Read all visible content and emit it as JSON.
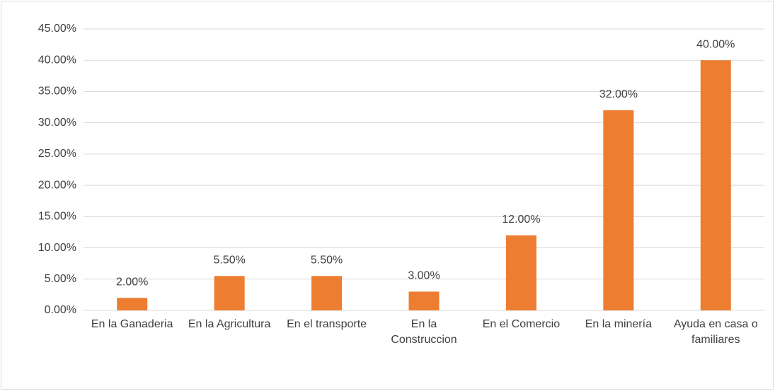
{
  "chart_data": {
    "type": "bar",
    "categories": [
      "En la Ganaderia",
      "En la Agricultura",
      "En el transporte",
      "En la Construccion",
      "En el Comercio",
      "En la minería",
      "Ayuda en casa o familiares"
    ],
    "values": [
      2,
      5.5,
      5.5,
      3,
      12,
      32,
      40
    ],
    "value_labels": [
      "2.00%",
      "5.50%",
      "5.50%",
      "3.00%",
      "12.00%",
      "32.00%",
      "40.00%"
    ],
    "color": "#ed7d31",
    "ylim": [
      0,
      45
    ],
    "yticks": [
      {
        "value": 0,
        "label": "0.00%"
      },
      {
        "value": 5,
        "label": "5.00%"
      },
      {
        "value": 10,
        "label": "10.00%"
      },
      {
        "value": 15,
        "label": "15.00%"
      },
      {
        "value": 20,
        "label": "20.00%"
      },
      {
        "value": 25,
        "label": "25.00%"
      },
      {
        "value": 30,
        "label": "30.00%"
      },
      {
        "value": 35,
        "label": "35.00%"
      },
      {
        "value": 40,
        "label": "40.00%"
      },
      {
        "value": 45,
        "label": "45.00%"
      }
    ],
    "grid": true
  }
}
